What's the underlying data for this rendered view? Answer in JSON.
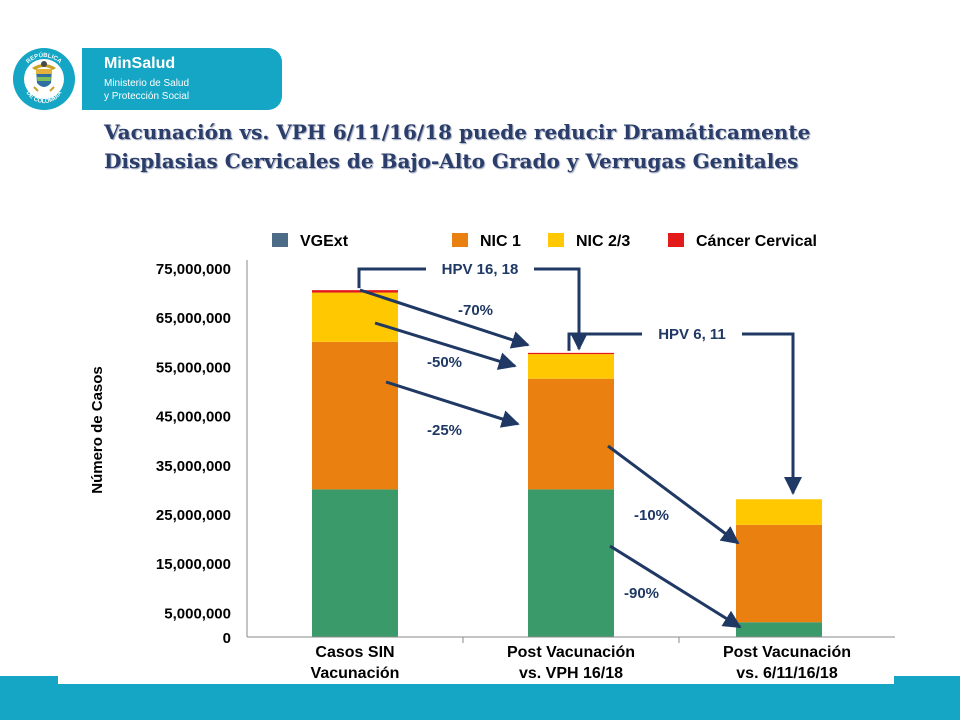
{
  "logo": {
    "brand": "MinSalud",
    "subtitle_line1": "Ministerio de Salud",
    "subtitle_line2": "y Protección Social",
    "seal_text_top": "REPÚBLICA",
    "seal_text_bottom": "DE COLOMBIA"
  },
  "title": {
    "line1": "Vacunación vs. VPH 6/11/16/18 puede reducir Dramáticamente",
    "line2": "Displasias Cervicales de Bajo-Alto Grado y Verrugas Genitales"
  },
  "colors": {
    "VGExt": "#3a9a6a",
    "NIC1": "#e9800f",
    "NIC23": "#ffc800",
    "Cancer": "#e21a1a",
    "legend_VGExt": "#4b6b86",
    "arrow": "#1f3864",
    "brand": "#14a6c4"
  },
  "chart_data": {
    "type": "bar",
    "stacked": true,
    "ylabel": "Número de Casos",
    "xlabel": "",
    "ylim": [
      0,
      75000000
    ],
    "yticks": [
      0,
      5000000,
      15000000,
      25000000,
      35000000,
      45000000,
      55000000,
      65000000,
      75000000
    ],
    "ytick_labels": [
      "0",
      "5,000,000",
      "15,000,000",
      "25,000,000",
      "35,000,000",
      "45,000,000",
      "55,000,000",
      "65,000,000",
      "75,000,000"
    ],
    "categories": [
      [
        "Casos SIN",
        "Vacunación"
      ],
      [
        "Post Vacunación",
        "vs.  VPH 16/18"
      ],
      [
        "Post Vacunación",
        "vs.  6/11/16/18"
      ]
    ],
    "legend": [
      "VGExt",
      "NIC 1",
      "NIC 2/3",
      "Cáncer Cervical"
    ],
    "legend_position": "top",
    "grid": false,
    "series": [
      {
        "name": "VGExt",
        "key": "VGExt",
        "values": [
          30000000,
          30000000,
          3000000
        ]
      },
      {
        "name": "NIC 1",
        "key": "NIC1",
        "values": [
          30000000,
          22500000,
          19800000
        ]
      },
      {
        "name": "NIC 2/3",
        "key": "NIC23",
        "values": [
          10000000,
          5000000,
          5200000
        ]
      },
      {
        "name": "Cáncer Cervical",
        "key": "Cancer",
        "values": [
          500000,
          250000,
          0
        ]
      }
    ],
    "annotations": {
      "hpv1618": "HPV 16, 18",
      "hpv611": "HPV 6, 11",
      "pct70": "-70%",
      "pct50": "-50%",
      "pct25": "-25%",
      "pct10": "-10%",
      "pct90": "-90%"
    }
  }
}
